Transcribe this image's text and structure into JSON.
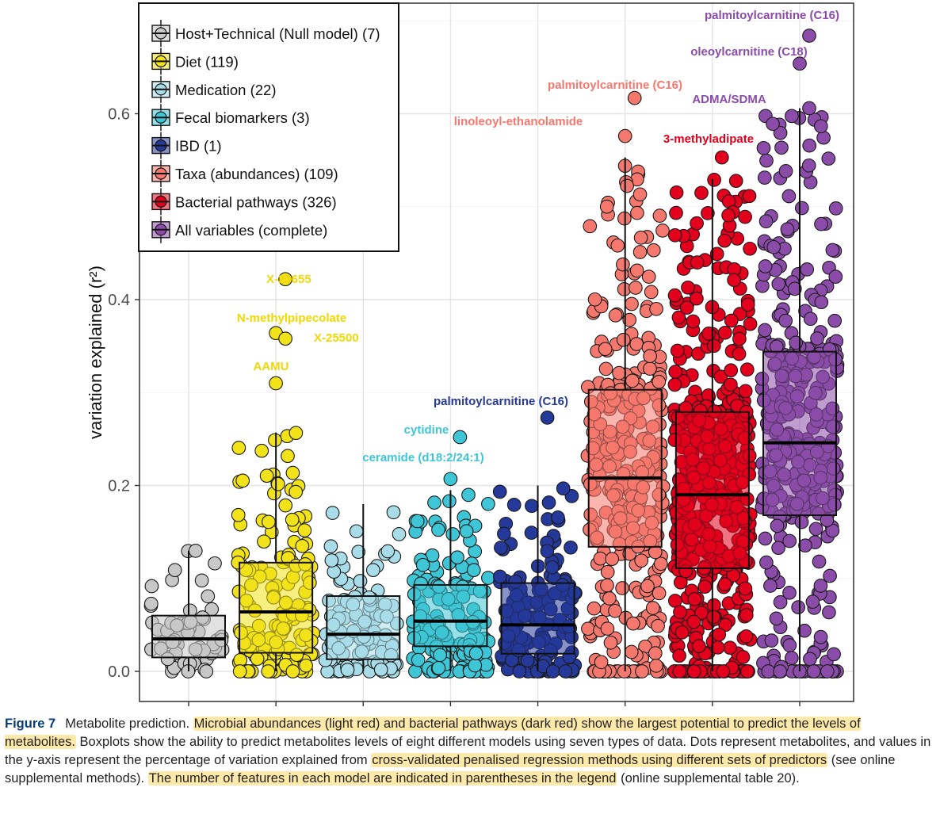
{
  "chart_data": {
    "type": "box",
    "ylabel": "variation explained (r²)",
    "xlabel": "",
    "ylim": [
      0,
      0.7
    ],
    "yticks": [
      "0.0",
      "0.2",
      "0.4",
      "0.6"
    ],
    "grid": true,
    "legend_position": "top-left",
    "series": [
      {
        "name": "Host+Technical (Null model) (7)",
        "color": "#c8c8c8",
        "box": {
          "q1": 0.015,
          "median": 0.035,
          "q3": 0.06,
          "whisker_low": 0.0,
          "whisker_high": 0.13
        },
        "max": 0.147
      },
      {
        "name": "Diet (119)",
        "color": "#f2e21a",
        "box": {
          "q1": 0.02,
          "median": 0.064,
          "q3": 0.117,
          "whisker_low": 0.0,
          "whisker_high": 0.257
        },
        "max": 0.422
      },
      {
        "name": "Medication (22)",
        "color": "#a8dce8",
        "box": {
          "q1": 0.013,
          "median": 0.04,
          "q3": 0.081,
          "whisker_low": 0.0,
          "whisker_high": 0.18
        },
        "max": 0.196
      },
      {
        "name": "Fecal biomarkers (3)",
        "color": "#3ec6d6",
        "box": {
          "q1": 0.027,
          "median": 0.054,
          "q3": 0.093,
          "whisker_low": 0.0,
          "whisker_high": 0.195
        },
        "max": 0.252
      },
      {
        "name": "IBD (1)",
        "color": "#25399a",
        "box": {
          "q1": 0.019,
          "median": 0.05,
          "q3": 0.095,
          "whisker_low": 0.0,
          "whisker_high": 0.2
        },
        "max": 0.273
      },
      {
        "name": "Taxa (abundances) (109)",
        "color": "#f5786e",
        "box": {
          "q1": 0.134,
          "median": 0.208,
          "q3": 0.303,
          "whisker_low": 0.0,
          "whisker_high": 0.553
        },
        "max": 0.617
      },
      {
        "name": "Bacterial pathways (326)",
        "color": "#e3001c",
        "box": {
          "q1": 0.111,
          "median": 0.19,
          "q3": 0.279,
          "whisker_low": 0.0,
          "whisker_high": 0.53
        },
        "max": 0.553
      },
      {
        "name": "All variables (complete)",
        "color": "#8a4ca8",
        "box": {
          "q1": 0.168,
          "median": 0.246,
          "q3": 0.344,
          "whisker_low": 0.0,
          "whisker_high": 0.606
        },
        "max": 0.684
      }
    ],
    "annotations": [
      {
        "text": "X-23655",
        "series": 1,
        "y": 0.422,
        "color": "#f2d800"
      },
      {
        "text": "N-methylpipecolate",
        "series": 1,
        "y": 0.364,
        "color": "#f2d800"
      },
      {
        "text": "X-25500",
        "series": 1,
        "y": 0.358,
        "color": "#f2d800"
      },
      {
        "text": "AAMU",
        "series": 1,
        "y": 0.31,
        "color": "#f2d800"
      },
      {
        "text": "palmitoylcarnitine (C16)",
        "series": 4,
        "y": 0.273,
        "color": "#25399a"
      },
      {
        "text": "cytidine",
        "series": 3,
        "y": 0.252,
        "color": "#3ec6d6"
      },
      {
        "text": "ceramide (d18:2/24:1)",
        "series": 3,
        "y": 0.207,
        "color": "#3ec6d6"
      },
      {
        "text": "palmitoylcarnitine (C16)",
        "series": 5,
        "y": 0.617,
        "color": "#f5786e"
      },
      {
        "text": "linoleoyl-ethanolamide",
        "series": 5,
        "y": 0.576,
        "color": "#f5786e"
      },
      {
        "text": "3-methyladipate",
        "series": 6,
        "y": 0.553,
        "color": "#e3001c"
      },
      {
        "text": "ADMA/SDMA",
        "series": 7,
        "y": 0.606,
        "color": "#8a4ca8"
      },
      {
        "text": "oleoylcarnitine (C18)",
        "series": 7,
        "y": 0.654,
        "color": "#8a4ca8"
      },
      {
        "text": "palmitoylcarnitine (C16)",
        "series": 7,
        "y": 0.684,
        "color": "#8a4ca8"
      }
    ]
  },
  "caption": {
    "label": "Figure 7",
    "t1": "Metabolite prediction. ",
    "h1": "Microbial abundances (light red) and bacterial pathways (dark red) show the largest potential to predict the levels of metabolites.",
    "t2": " Boxplots show the ability to predict metabolites levels of eight different models using seven types of data. Dots represent metabolites, and values in the y-axis represent the percentage of variation explained from ",
    "h2": "cross-validated penalised regression methods using different sets of predictors",
    "t3": " (see online supplemental methods). ",
    "h3": "The number of features in each model are indicated in parentheses in the legend",
    "t4": " (online supplemental table 20)."
  }
}
